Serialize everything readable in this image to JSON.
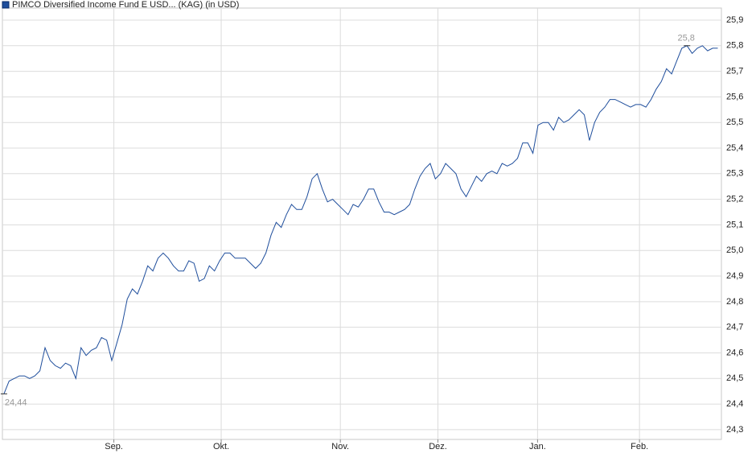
{
  "chart_data": {
    "type": "line",
    "series": [
      {
        "name": "PIMCO Diversified Income Fund E USD... (KAG) (in USD)",
        "color": "#1f4e9c",
        "x": [
          0,
          1,
          2,
          3,
          4,
          5,
          6,
          7,
          8,
          9,
          10,
          11,
          12,
          13,
          14,
          15,
          16,
          17,
          18,
          19,
          20,
          21,
          22,
          23,
          24,
          25,
          26,
          27,
          28,
          29,
          30,
          31,
          32,
          33,
          34,
          35,
          36,
          37,
          38,
          39,
          40,
          41,
          42,
          43,
          44,
          45,
          46,
          47,
          48,
          49,
          50,
          51,
          52,
          53,
          54,
          55,
          56,
          57,
          58,
          59,
          60,
          61,
          62,
          63,
          64,
          65,
          66,
          67,
          68,
          69,
          70,
          71,
          72,
          73,
          74,
          75,
          76,
          77,
          78,
          79,
          80,
          81,
          82,
          83,
          84,
          85,
          86,
          87,
          88,
          89,
          90,
          91,
          92,
          93,
          94,
          95,
          96,
          97,
          98,
          99,
          100,
          101,
          102,
          103,
          104,
          105,
          106,
          107,
          108,
          109,
          110,
          111,
          112,
          113,
          114,
          115,
          116,
          117,
          118,
          119,
          120,
          121,
          122,
          123,
          124,
          125,
          126,
          127,
          128,
          129,
          130,
          131,
          132,
          133,
          134,
          135,
          136,
          137,
          138,
          139
        ],
        "values": [
          24.44,
          24.49,
          24.5,
          24.51,
          24.51,
          24.5,
          24.51,
          24.53,
          24.62,
          24.57,
          24.55,
          24.54,
          24.56,
          24.55,
          24.5,
          24.62,
          24.59,
          24.61,
          24.62,
          24.66,
          24.65,
          24.57,
          24.64,
          24.71,
          24.81,
          24.85,
          24.83,
          24.88,
          24.94,
          24.92,
          24.97,
          24.99,
          24.97,
          24.94,
          24.92,
          24.92,
          24.96,
          24.95,
          24.88,
          24.89,
          24.94,
          24.92,
          24.96,
          24.99,
          24.99,
          24.97,
          24.97,
          24.97,
          24.95,
          24.93,
          24.95,
          24.99,
          25.06,
          25.11,
          25.09,
          25.14,
          25.18,
          25.16,
          25.16,
          25.21,
          25.28,
          25.3,
          25.24,
          25.19,
          25.2,
          25.18,
          25.16,
          25.14,
          25.18,
          25.17,
          25.2,
          25.24,
          25.24,
          25.19,
          25.15,
          25.15,
          25.14,
          25.15,
          25.16,
          25.18,
          25.24,
          25.29,
          25.32,
          25.34,
          25.28,
          25.3,
          25.34,
          25.32,
          25.3,
          25.24,
          25.21,
          25.25,
          25.29,
          25.27,
          25.3,
          25.31,
          25.3,
          25.34,
          25.33,
          25.34,
          25.36,
          25.42,
          25.42,
          25.38,
          25.49,
          25.5,
          25.5,
          25.47,
          25.52,
          25.5,
          25.51,
          25.53,
          25.55,
          25.53,
          25.43,
          25.5,
          25.54,
          25.56,
          25.59,
          25.59,
          25.58,
          25.57,
          25.56,
          25.57,
          25.57,
          25.56,
          25.59,
          25.63,
          25.66,
          25.71,
          25.69,
          25.74,
          25.79,
          25.8,
          25.77,
          25.79,
          25.8,
          25.78,
          25.79,
          25.79
        ]
      }
    ],
    "annotations": [
      {
        "x": 0,
        "y": 24.44,
        "label": "24,44"
      },
      {
        "x": 133,
        "y": 25.8,
        "label": "25,8"
      }
    ],
    "xlim": [
      -0.3,
      139.7
    ],
    "xticks": [
      {
        "value": 21.4,
        "label": "Sep."
      },
      {
        "value": 42.3,
        "label": "Okt."
      },
      {
        "value": 65.5,
        "label": "Nov."
      },
      {
        "value": 84.5,
        "label": "Dez."
      },
      {
        "value": 103.9,
        "label": "Jan."
      },
      {
        "value": 123.75,
        "label": "Feb."
      }
    ],
    "ylim": [
      24.262,
      25.947
    ],
    "yticks": [
      {
        "value": 24.3,
        "label": "24,3"
      },
      {
        "value": 24.4,
        "label": "24,4"
      },
      {
        "value": 24.5,
        "label": "24,5"
      },
      {
        "value": 24.6,
        "label": "24,6"
      },
      {
        "value": 24.7,
        "label": "24,7"
      },
      {
        "value": 24.8,
        "label": "24,8"
      },
      {
        "value": 24.9,
        "label": "24,9"
      },
      {
        "value": 25.0,
        "label": "25,0"
      },
      {
        "value": 25.1,
        "label": "25,1"
      },
      {
        "value": 25.2,
        "label": "25,2"
      },
      {
        "value": 25.3,
        "label": "25,3"
      },
      {
        "value": 25.4,
        "label": "25,4"
      },
      {
        "value": 25.5,
        "label": "25,5"
      },
      {
        "value": 25.6,
        "label": "25,6"
      },
      {
        "value": 25.7,
        "label": "25,7"
      },
      {
        "value": 25.8,
        "label": "25,8"
      },
      {
        "value": 25.9,
        "label": "25,9"
      }
    ],
    "grid": true
  }
}
